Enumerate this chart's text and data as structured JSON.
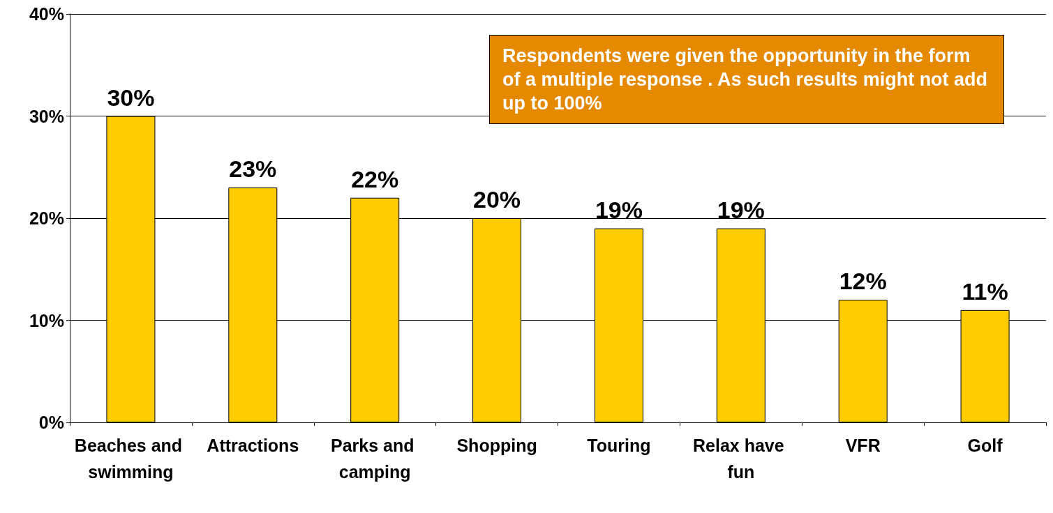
{
  "chart_data": {
    "type": "bar",
    "categories": [
      "Beaches and swimming",
      "Attractions",
      "Parks and camping",
      "Shopping",
      "Touring",
      "Relax have fun",
      "VFR",
      "Golf"
    ],
    "values": [
      30,
      23,
      22,
      20,
      19,
      19,
      12,
      11
    ],
    "value_labels": [
      "30%",
      "23%",
      "22%",
      "20%",
      "19%",
      "19%",
      "12%",
      "11%"
    ],
    "color": "#ffcc00",
    "ylim": [
      0,
      40
    ],
    "yticks": [
      {
        "value": 0,
        "label": "0%"
      },
      {
        "value": 10,
        "label": "10%"
      },
      {
        "value": 20,
        "label": "20%"
      },
      {
        "value": 30,
        "label": "30%"
      },
      {
        "value": 40,
        "label": "40%"
      }
    ],
    "grid": "y",
    "annotations": [
      "Respondents were given the opportunity in the form of a multiple response . As such results might not add up to 100%"
    ]
  }
}
